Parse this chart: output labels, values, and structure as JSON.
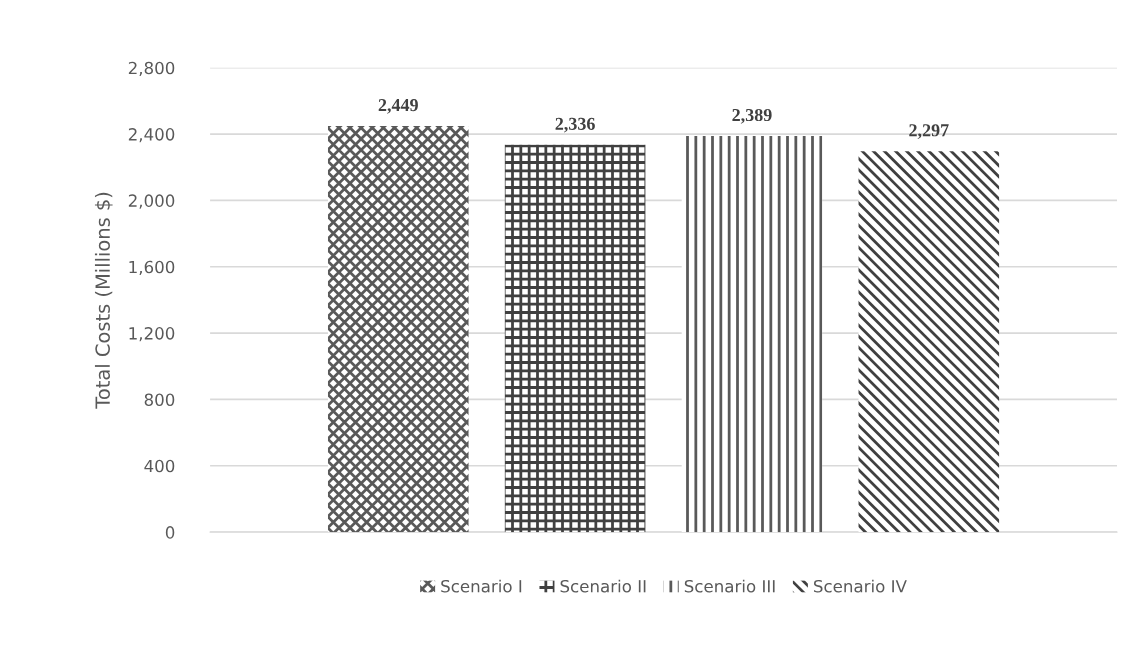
{
  "chart_data": {
    "type": "bar",
    "ylabel": "Total Costs (Millions $)",
    "categories": [
      null
    ],
    "series": [
      {
        "name": "Scenario I",
        "color": "#595959",
        "values": [
          2449
        ],
        "value_labels": [
          "2,449"
        ]
      },
      {
        "name": "Scenario II",
        "color": "#404040",
        "values": [
          2336
        ],
        "value_labels": [
          "2,336"
        ]
      },
      {
        "name": "Scenario III",
        "color": "#595959",
        "values": [
          2389
        ],
        "value_labels": [
          "2,389"
        ]
      },
      {
        "name": "Scenario IV",
        "color": "#404040",
        "values": [
          2297
        ],
        "value_labels": [
          "2,297"
        ]
      }
    ],
    "ylim": [
      0,
      2800
    ],
    "yticks": [
      0,
      {
        "value": 400,
        "label": "400"
      },
      {
        "value": 800,
        "label": "800"
      },
      {
        "value": 1200,
        "label": "1,200"
      },
      {
        "value": 1600,
        "label": "1,600"
      },
      {
        "value": 2000,
        "label": "2,000"
      },
      {
        "value": 2400,
        "label": "2,400"
      },
      {
        "value": 2800,
        "label": "2,800"
      }
    ],
    "grid": "y",
    "legend": "bottom"
  }
}
